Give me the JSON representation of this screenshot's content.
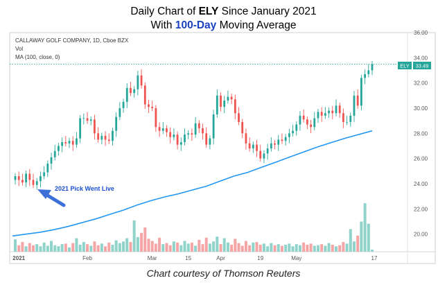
{
  "title_line1": {
    "pre": "Daily Chart of ",
    "bold": "ELY",
    "post": " Since January 2021"
  },
  "title_line2": {
    "pre": "With ",
    "bold": "100-Day",
    "post": " Moving Average"
  },
  "caption": "Chart courtesy of Thomson Reuters",
  "header": {
    "symbol_line": "CALLAWAY GOLF COMPANY, 1D, Cboe BZX",
    "vol_label": "Vol",
    "ma_label": "MA (100, close, 0)"
  },
  "annotation": "2021 Pick Went Live",
  "price_tag": {
    "symbol": "ELY",
    "value": "33.49"
  },
  "colors": {
    "up": "#26a69a",
    "down": "#ef5350",
    "ma": "#2196f3",
    "vol_up": "#8fd3cb",
    "vol_down": "#f4a6a6",
    "arrow": "#3d6fd9"
  },
  "chart_data": {
    "type": "candlestick",
    "title": "Daily Chart of ELY Since January 2021",
    "y_ticks": [
      "36.00",
      "34.00",
      "32.00",
      "30.00",
      "28.00",
      "26.00",
      "24.00",
      "22.00",
      "20.00"
    ],
    "x_ticks": [
      "2021",
      "Feb",
      "Mar",
      "15",
      "Apr",
      "19",
      "May",
      "17"
    ],
    "ylim": [
      18.6,
      36.0
    ],
    "closes": [
      24.6,
      24.3,
      24.1,
      24.8,
      24.3,
      23.9,
      24.2,
      24.6,
      24.9,
      25.6,
      26.1,
      26.6,
      27.0,
      27.3,
      27.2,
      27.4,
      27.1,
      27.6,
      29.2,
      29.2,
      29.0,
      29.1,
      28.0,
      27.5,
      27.8,
      27.5,
      27.4,
      28.2,
      29.3,
      30.0,
      30.5,
      31.6,
      31.2,
      31.5,
      32.6,
      31.8,
      30.3,
      30.1,
      30.0,
      28.5,
      28.2,
      28.4,
      28.1,
      27.7,
      27.9,
      27.1,
      27.3,
      27.9,
      28.0,
      27.9,
      28.8,
      28.4,
      28.0,
      27.1,
      27.6,
      29.5,
      31.0,
      30.1,
      30.6,
      30.9,
      30.7,
      29.6,
      28.9,
      28.0,
      27.2,
      26.8,
      27.1,
      26.6,
      26.0,
      26.4,
      26.8,
      27.2,
      27.1,
      27.5,
      27.4,
      27.7,
      28.0,
      28.2,
      28.7,
      29.4,
      29.1,
      28.7,
      28.5,
      29.2,
      29.7,
      29.4,
      29.6,
      29.8,
      29.6,
      30.2,
      29.6,
      28.9,
      28.9,
      29.4,
      31.0,
      30.2,
      32.4,
      32.7,
      33.0,
      33.5
    ],
    "volumes": [
      2.3,
      1.2,
      1.8,
      1.0,
      1.6,
      1.2,
      1.4,
      1.0,
      1.7,
      1.1,
      2.0,
      1.2,
      1.0,
      1.4,
      1.5,
      0.8,
      1.6,
      2.5,
      1.3,
      1.8,
      1.4,
      1.1,
      1.9,
      1.2,
      1.5,
      1.0,
      1.7,
      1.3,
      2.1,
      1.6,
      1.9,
      2.5,
      1.8,
      5.8,
      2.7,
      3.5,
      4.5,
      2.4,
      2.0,
      1.5,
      2.6,
      1.4,
      1.6,
      1.2,
      1.9,
      1.7,
      1.2,
      2.0,
      1.5,
      1.7,
      1.1,
      2.2,
      1.4,
      2.6,
      1.5,
      1.9,
      2.8,
      1.4,
      2.5,
      1.7,
      1.3,
      2.4,
      1.6,
      1.1,
      2.0,
      1.2,
      1.7,
      1.8,
      1.3,
      1.5,
      1.0,
      1.6,
      1.2,
      1.4,
      1.1,
      1.3,
      1.5,
      1.0,
      1.4,
      1.2,
      1.7,
      1.3,
      1.5,
      1.1,
      1.2,
      1.4,
      1.1,
      1.6,
      1.3,
      1.0,
      1.2,
      1.8,
      1.5,
      4.2,
      1.9,
      3.0,
      5.6,
      9.0,
      5.2,
      0.4
    ],
    "ma100": [
      19.85,
      20.0,
      20.15,
      20.35,
      20.6,
      20.9,
      21.2,
      21.55,
      21.9,
      22.3,
      22.65,
      22.95,
      23.2,
      23.5,
      23.8,
      24.2,
      24.6,
      24.9,
      25.3,
      25.7,
      26.1,
      26.5,
      26.9,
      27.25,
      27.6,
      27.9,
      28.2
    ]
  }
}
